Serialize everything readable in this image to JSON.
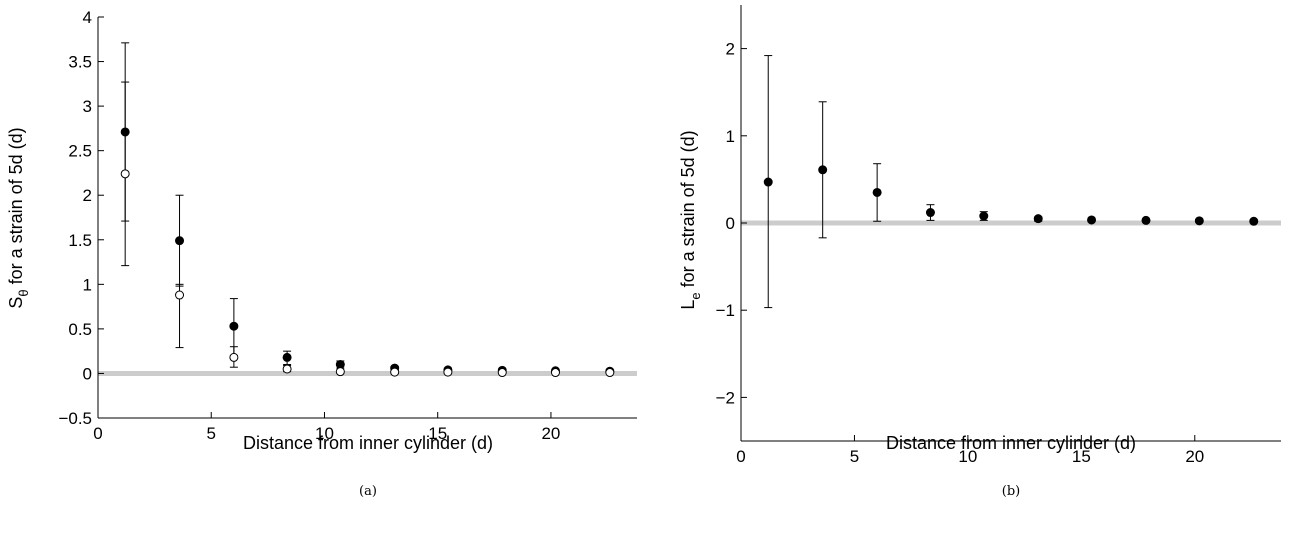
{
  "chart_data": [
    {
      "type": "scatter",
      "panel_label": "(a)",
      "xlabel": "Distance from inner cylinder (d)",
      "ylabel_main": "S",
      "ylabel_sub": "θ",
      "ylabel_rest": " for a strain of 5d (d)",
      "xlim": [
        0,
        23.8
      ],
      "ylim": [
        -0.5,
        4
      ],
      "xticks": [
        0,
        5,
        10,
        15,
        20
      ],
      "yticks": [
        -0.5,
        0,
        0.5,
        1,
        1.5,
        2,
        2.5,
        3,
        3.5,
        4
      ],
      "reference_line_y": 0,
      "colors": {
        "reference_line": "#cccccc",
        "filled": "#000000",
        "open_fill": "#ffffff"
      },
      "series": [
        {
          "marker": "filled",
          "x": [
            1.2,
            3.6,
            6.0,
            8.35,
            10.7,
            13.1,
            15.45,
            17.85,
            20.2,
            22.6
          ],
          "y": [
            2.71,
            1.49,
            0.53,
            0.18,
            0.1,
            0.06,
            0.04,
            0.035,
            0.03,
            0.025
          ],
          "err_low": [
            1.21,
            0.98,
            0.2,
            0.1,
            0.06,
            0.035,
            0.025,
            0.02,
            0.015,
            0.01
          ],
          "err_high": [
            3.71,
            2.0,
            0.84,
            0.25,
            0.14,
            0.08,
            0.06,
            0.05,
            0.04,
            0.035
          ]
        },
        {
          "marker": "open",
          "x": [
            1.2,
            3.6,
            6.0,
            8.35,
            10.7,
            13.1,
            15.45,
            17.85,
            20.2,
            22.6
          ],
          "y": [
            2.24,
            0.88,
            0.18,
            0.05,
            0.02,
            0.015,
            0.015,
            0.01,
            0.01,
            0.01
          ],
          "err_low": [
            1.71,
            0.29,
            0.07,
            0.02,
            0.01,
            0.005,
            0.005,
            0.005,
            0.005,
            0.005
          ],
          "err_high": [
            3.27,
            1.0,
            0.3,
            0.09,
            0.04,
            0.025,
            0.025,
            0.02,
            0.02,
            0.02
          ]
        }
      ]
    },
    {
      "type": "scatter",
      "panel_label": "(b)",
      "xlabel": "Distance from inner cylinder (d)",
      "ylabel_main": "L",
      "ylabel_sub": "e",
      "ylabel_rest": " for a strain of 5d (d)",
      "xlim": [
        0,
        23.8
      ],
      "ylim": [
        -2.5,
        2.5
      ],
      "xticks": [
        0,
        5,
        10,
        15,
        20
      ],
      "yticks": [
        -2,
        -1,
        0,
        1,
        2
      ],
      "reference_line_y": 0,
      "colors": {
        "reference_line": "#cccccc",
        "filled": "#000000"
      },
      "series": [
        {
          "marker": "filled",
          "x": [
            1.2,
            3.6,
            6.0,
            8.35,
            10.7,
            13.1,
            15.45,
            17.85,
            20.2,
            22.6
          ],
          "y": [
            0.47,
            0.61,
            0.35,
            0.12,
            0.08,
            0.05,
            0.035,
            0.03,
            0.025,
            0.02
          ],
          "err_low": [
            -0.97,
            -0.17,
            0.02,
            0.03,
            0.03,
            0.02,
            0.015,
            0.01,
            0.01,
            0.005
          ],
          "err_high": [
            1.92,
            1.39,
            0.68,
            0.21,
            0.13,
            0.07,
            0.055,
            0.045,
            0.04,
            0.035
          ]
        }
      ]
    }
  ]
}
